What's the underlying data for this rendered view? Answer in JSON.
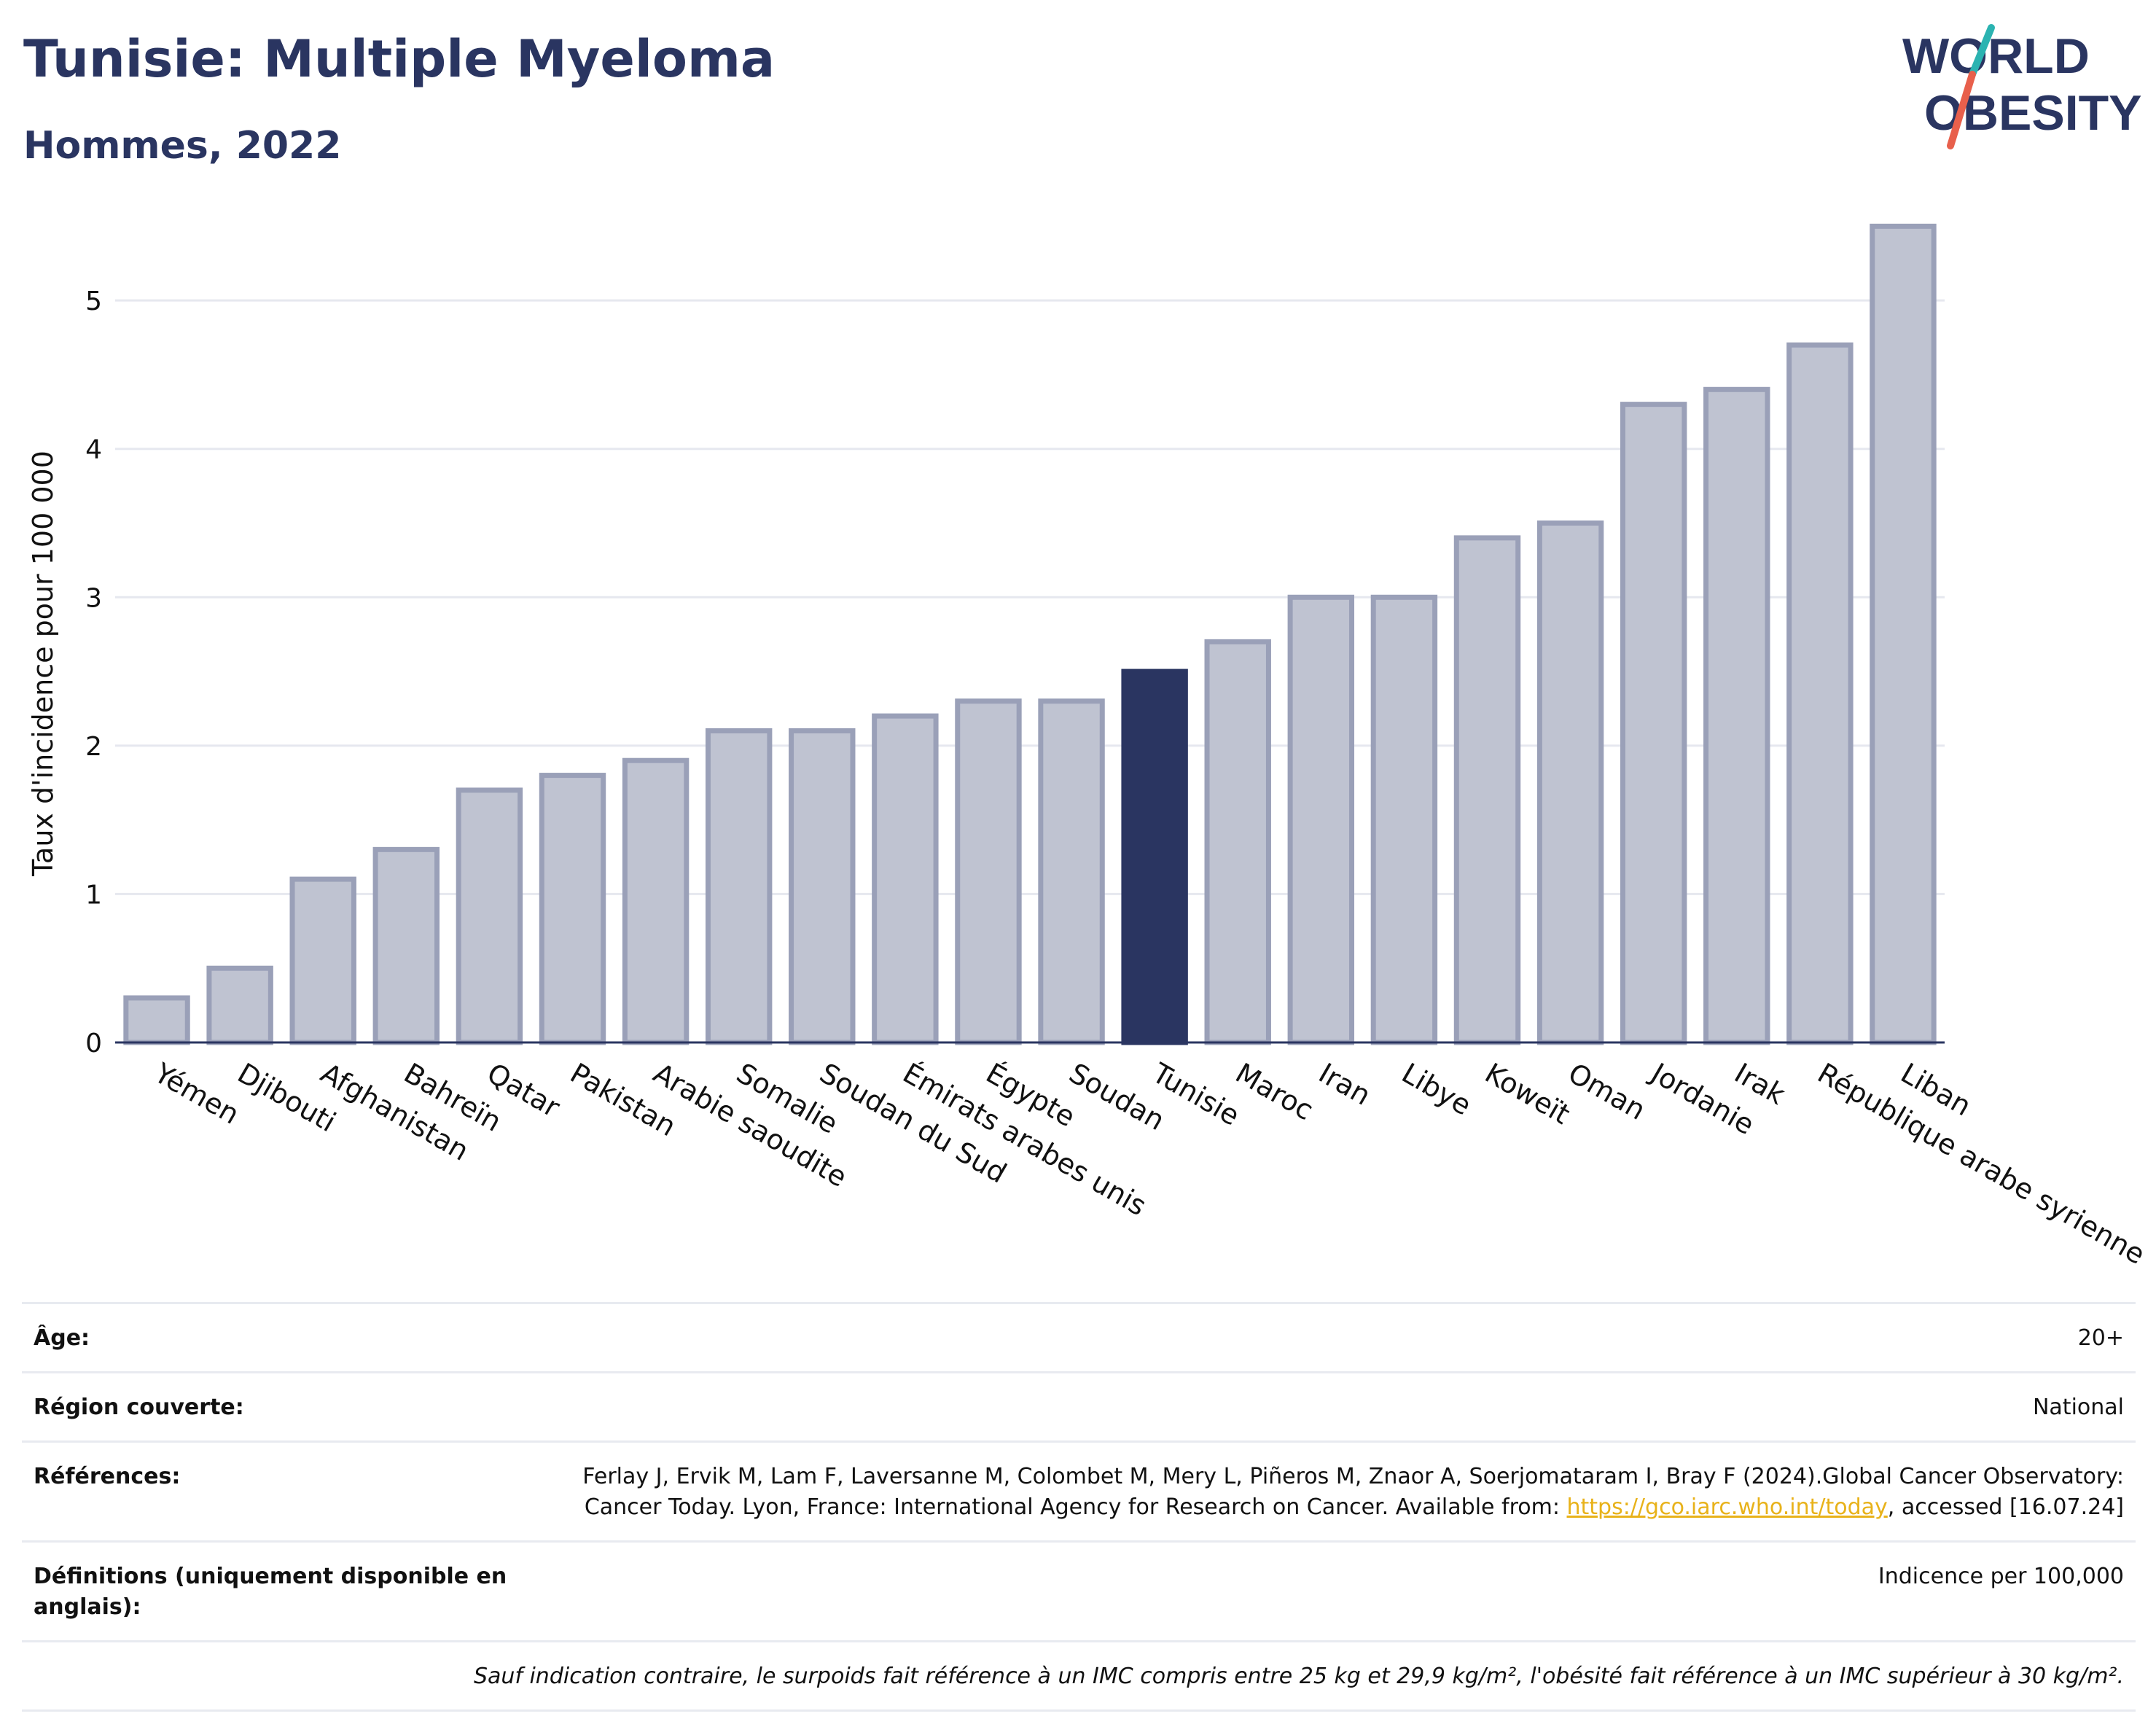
{
  "header": {
    "title": "Tunisie: Multiple Myeloma",
    "subtitle": "Hommes, 2022"
  },
  "logo": {
    "line1": "WORLD",
    "line2": "OBESITY",
    "accent_teal": "#2bb3b1",
    "accent_red": "#e8604c"
  },
  "colors": {
    "bar": "#bfc3d1",
    "bar_stroke": "#9aa0b8",
    "highlight": "#2a3561",
    "grid": "#e6e8ef",
    "axis": "#2a3561"
  },
  "chart_data": {
    "type": "bar",
    "title": "",
    "xlabel": "",
    "ylabel": "Taux d'incidence pour 100 000",
    "ylim": [
      0,
      5.6
    ],
    "yticks": [
      0,
      1,
      2,
      3,
      4,
      5
    ],
    "grid": true,
    "highlight": "Tunisie",
    "categories": [
      "Yémen",
      "Djibouti",
      "Afghanistan",
      "Bahreïn",
      "Qatar",
      "Pakistan",
      "Arabie saoudite",
      "Somalie",
      "Soudan du Sud",
      "Émirats arabes unis",
      "Égypte",
      "Soudan",
      "Tunisie",
      "Maroc",
      "Iran",
      "Libye",
      "Koweït",
      "Oman",
      "Jordanie",
      "Irak",
      "République arabe syrienne",
      "Liban"
    ],
    "values": [
      0.3,
      0.5,
      1.1,
      1.3,
      1.7,
      1.8,
      1.9,
      2.1,
      2.1,
      2.2,
      2.3,
      2.3,
      2.5,
      2.7,
      3.0,
      3.0,
      3.4,
      3.5,
      4.3,
      4.4,
      4.7,
      5.5
    ]
  },
  "info": {
    "age_label": "Âge:",
    "age_value": "20+",
    "region_label": "Région couverte:",
    "region_value": "National",
    "refs_label": "Références:",
    "refs_text": "Ferlay J, Ervik M, Lam F, Laversanne M, Colombet M, Mery L, Piñeros M, Znaor A, Soerjomataram I, Bray F (2024).Global Cancer Observatory: Cancer Today. Lyon, France: International Agency for Research on Cancer. Available from:",
    "refs_link": "https://gco.iarc.who.int/today",
    "refs_suffix": ", accessed [16.07.24]",
    "defs_label": "Définitions (uniquement disponible en anglais):",
    "defs_value": "Indicence per 100,000",
    "note": "Sauf indication contraire, le surpoids fait référence à un IMC compris entre 25 kg et 29,9 kg/m², l'obésité fait référence à un IMC supérieur à 30 kg/m²."
  }
}
